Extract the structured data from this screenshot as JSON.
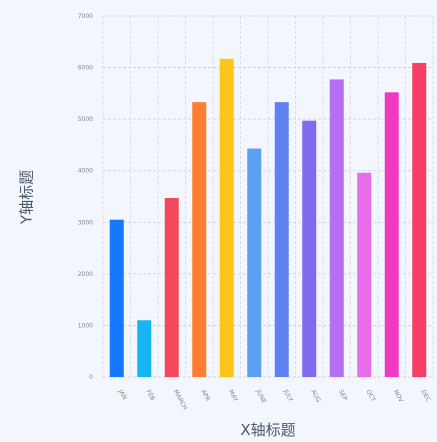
{
  "chart_data": {
    "type": "bar",
    "title": "",
    "xlabel": "X轴标题",
    "ylabel": "Y轴标题",
    "categories": [
      "JAN",
      "FEB",
      "MARCH",
      "APR",
      "MAY",
      "JUNE",
      "JULY",
      "AUG",
      "SEP",
      "OCT",
      "NOV",
      "DEC"
    ],
    "values": [
      3050,
      1100,
      3470,
      5330,
      6170,
      4430,
      5330,
      4970,
      5770,
      3960,
      5520,
      6090
    ],
    "colors": [
      "#1677ff",
      "#17b5f2",
      "#f2485b",
      "#ff7d32",
      "#fcc51a",
      "#5ba1f2",
      "#5f82f0",
      "#8169f0",
      "#b66ff2",
      "#e66ee8",
      "#f03ac0",
      "#f63d63"
    ],
    "yticks": [
      0,
      1000,
      2000,
      3000,
      4000,
      5000,
      6000,
      7000
    ],
    "ylim": [
      0,
      7000
    ],
    "grid": true,
    "legend": "none"
  }
}
